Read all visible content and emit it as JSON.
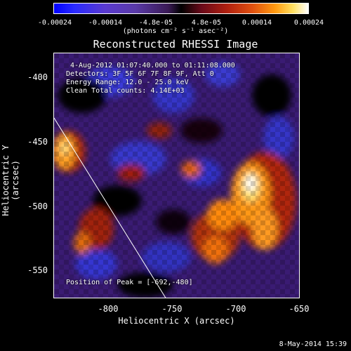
{
  "colorbar": {
    "ticks": [
      "-0.00024",
      "-0.00014",
      "-4.8e-05",
      "4.8e-05",
      "0.00014",
      "0.00024"
    ],
    "unit_label": "(photons cm⁻² s⁻¹ asec⁻²)"
  },
  "title": "Reconstructed RHESSI Image",
  "annotations": {
    "time_range": "4-Aug-2012 01:07:40.000 to 01:11:08.000",
    "detectors": "Detectors: 3F 5F 6F 7F 8F 9F, Att 0",
    "energy": "Energy Range: 12.0 - 25.0 keV",
    "clean": "Clean      Total counts: 4.14E+03",
    "peak": "Position of Peak = [-692,-480]"
  },
  "axes": {
    "xlabel": "Heliocentric X (arcsec)",
    "ylabel": "Heliocentric Y (arcsec)",
    "xticks": [
      "-800",
      "-750",
      "-700",
      "-650"
    ],
    "yticks": [
      "-400",
      "-450",
      "-500",
      "-550"
    ]
  },
  "footer": {
    "date": "8-May-2014 15:39"
  }
}
